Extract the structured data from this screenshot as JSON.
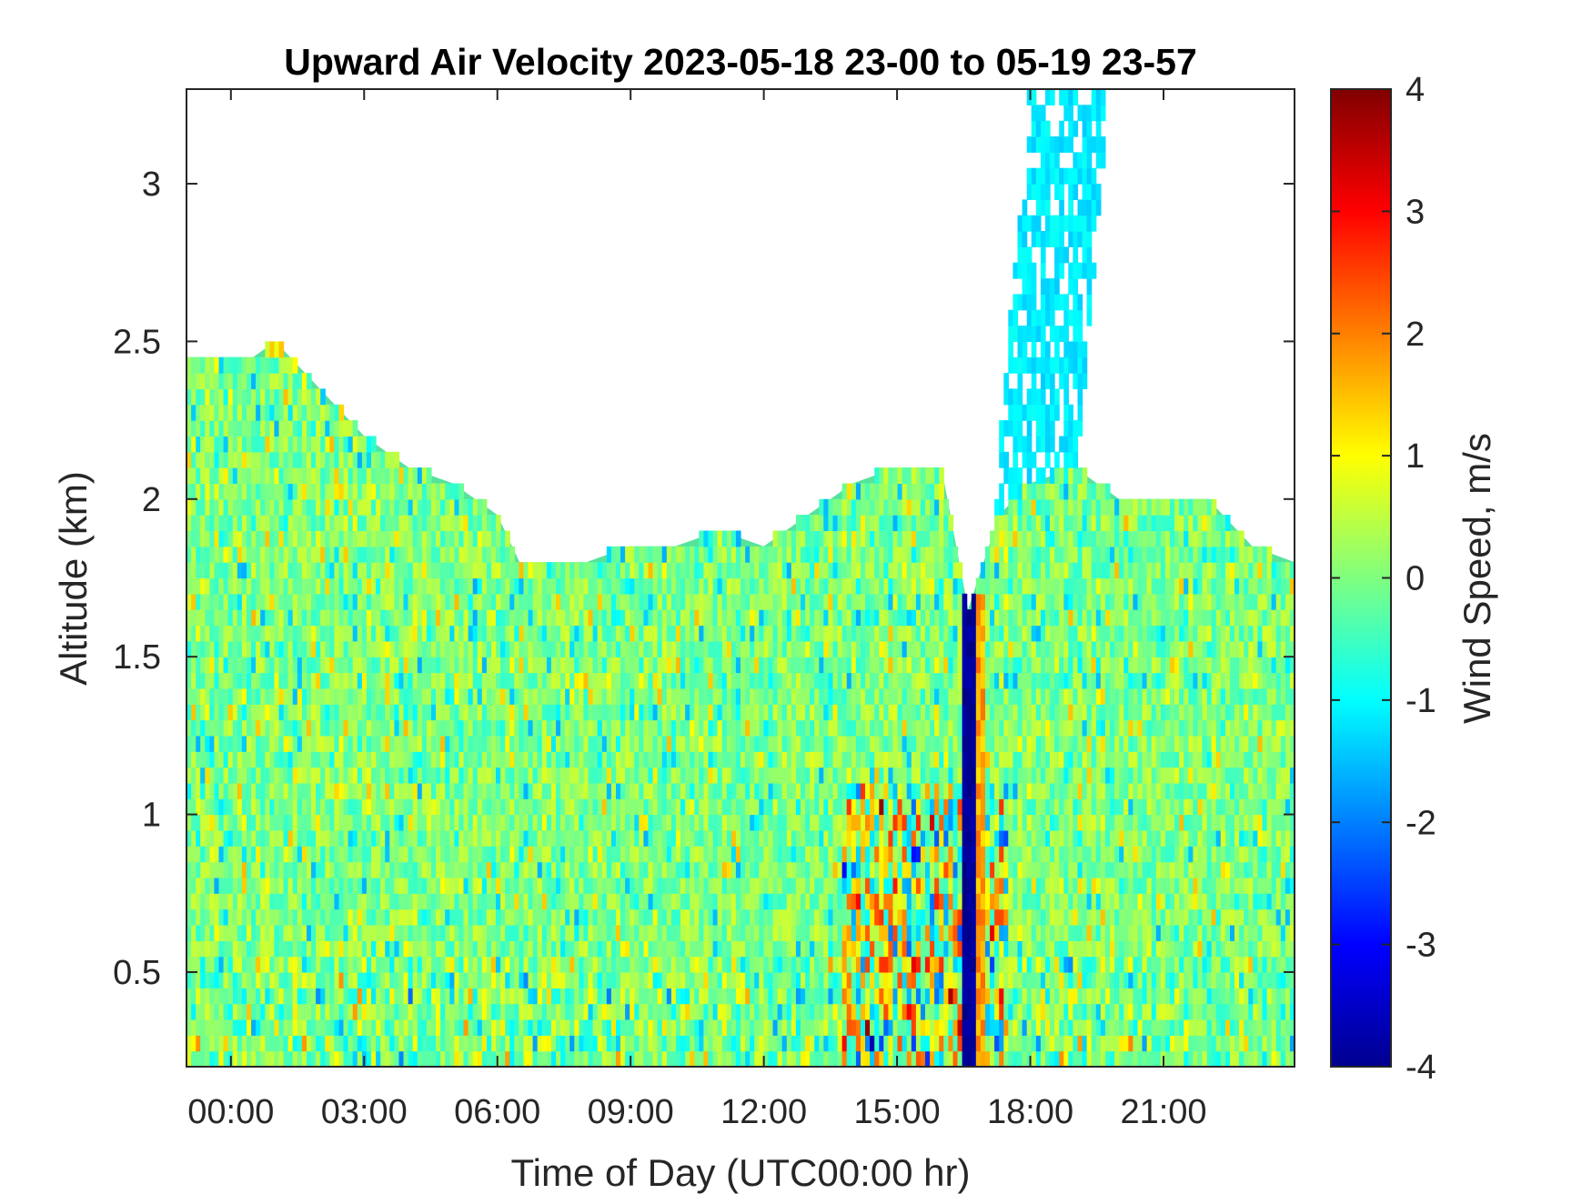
{
  "chart_data": {
    "type": "heatmap",
    "title": "Upward Air Velocity 2023-05-18 23-00 to 05-19 23-57",
    "xlabel": "Time of Day (UTC00:00 hr)",
    "ylabel": "Altitude (km)",
    "colorbar_label": "Wind Speed, m/s",
    "colormap": "jet",
    "x_range_hours": [
      -1,
      23.95
    ],
    "y_range_km": [
      0.2,
      3.3
    ],
    "c_range": [
      -4,
      4
    ],
    "x_ticks": [
      {
        "label": "00:00",
        "value": 0
      },
      {
        "label": "03:00",
        "value": 3
      },
      {
        "label": "06:00",
        "value": 6
      },
      {
        "label": "09:00",
        "value": 9
      },
      {
        "label": "12:00",
        "value": 12
      },
      {
        "label": "15:00",
        "value": 15
      },
      {
        "label": "18:00",
        "value": 18
      },
      {
        "label": "21:00",
        "value": 21
      }
    ],
    "y_ticks": [
      {
        "label": "0.5",
        "value": 0.5
      },
      {
        "label": "1",
        "value": 1
      },
      {
        "label": "1.5",
        "value": 1.5
      },
      {
        "label": "2",
        "value": 2
      },
      {
        "label": "2.5",
        "value": 2.5
      },
      {
        "label": "3",
        "value": 3
      }
    ],
    "c_ticks": [
      {
        "label": "4",
        "value": 4
      },
      {
        "label": "3",
        "value": 3
      },
      {
        "label": "2",
        "value": 2
      },
      {
        "label": "1",
        "value": 1
      },
      {
        "label": "0",
        "value": 0
      },
      {
        "label": "-1",
        "value": -1
      },
      {
        "label": "-2",
        "value": -2
      },
      {
        "label": "-3",
        "value": -3
      },
      {
        "label": "-4",
        "value": -4
      }
    ],
    "data_top_altitude_km": [
      {
        "t": -1.0,
        "top": 2.45
      },
      {
        "t": 0.5,
        "top": 2.45
      },
      {
        "t": 1.0,
        "top": 2.5
      },
      {
        "t": 2.0,
        "top": 2.35
      },
      {
        "t": 3.0,
        "top": 2.2
      },
      {
        "t": 4.0,
        "top": 2.1
      },
      {
        "t": 5.0,
        "top": 2.05
      },
      {
        "t": 6.0,
        "top": 1.95
      },
      {
        "t": 6.5,
        "top": 1.8
      },
      {
        "t": 8.0,
        "top": 1.8
      },
      {
        "t": 9.0,
        "top": 1.85
      },
      {
        "t": 10.0,
        "top": 1.85
      },
      {
        "t": 11.0,
        "top": 1.9
      },
      {
        "t": 12.0,
        "top": 1.85
      },
      {
        "t": 13.0,
        "top": 1.95
      },
      {
        "t": 14.0,
        "top": 2.05
      },
      {
        "t": 15.0,
        "top": 2.1
      },
      {
        "t": 16.0,
        "top": 2.1
      },
      {
        "t": 16.6,
        "top": 1.65
      },
      {
        "t": 17.3,
        "top": 1.95
      },
      {
        "t": 18.0,
        "top": 2.05
      },
      {
        "t": 19.0,
        "top": 2.1
      },
      {
        "t": 20.0,
        "top": 2.0
      },
      {
        "t": 21.0,
        "top": 2.0
      },
      {
        "t": 22.0,
        "top": 2.0
      },
      {
        "t": 23.0,
        "top": 1.85
      },
      {
        "t": 23.95,
        "top": 1.8
      }
    ],
    "features": [
      {
        "t_start": 14.5,
        "t_end": 17.5,
        "alt_max_km": 1.0,
        "speed_m_s": "-4 to 4"
      },
      {
        "t_start": 16.6,
        "t_end": 16.7,
        "alt_max_km": 2.0,
        "speed_m_s": -4
      },
      {
        "t_start": 17.3,
        "t_end": 19.8,
        "alt_min_km": 2.0,
        "alt_max_km": 3.3,
        "speed_m_s": -1
      }
    ]
  }
}
